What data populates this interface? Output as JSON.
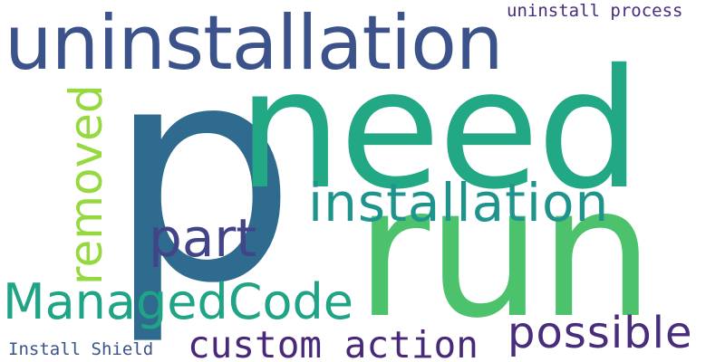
{
  "words": [
    {
      "key": "p",
      "text": "p",
      "color": "#2e6b8e"
    },
    {
      "key": "need",
      "text": "need",
      "color": "#22a884"
    },
    {
      "key": "uninstallation",
      "text": "uninstallation",
      "color": "#3b528b"
    },
    {
      "key": "run",
      "text": "run",
      "color": "#4cc26c"
    },
    {
      "key": "installation",
      "text": "installation",
      "color": "#1f948c"
    },
    {
      "key": "removed",
      "text": "removed",
      "color": "#95d840"
    },
    {
      "key": "part",
      "text": "part",
      "color": "#414487"
    },
    {
      "key": "ManagedCode",
      "text": "ManagedCode",
      "color": "#20a486"
    },
    {
      "key": "custom_action",
      "text": "custom action",
      "color": "#482878"
    },
    {
      "key": "possible",
      "text": "possible",
      "color": "#472d7b"
    },
    {
      "key": "uninstall_process",
      "text": "uninstall process",
      "color": "#472d7b"
    },
    {
      "key": "Install_Shield",
      "text": "Install Shield",
      "color": "#3b528b"
    }
  ]
}
